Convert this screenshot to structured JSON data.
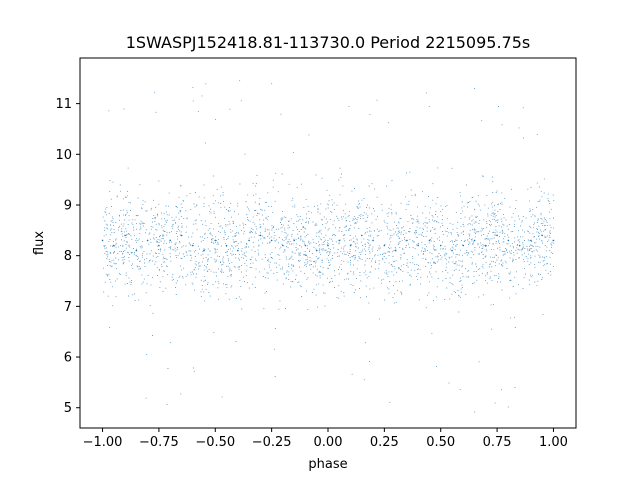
{
  "chart_data": {
    "type": "scatter",
    "title": "1SWASPJ152418.81-113730.0 Period 2215095.75s",
    "xlabel": "phase",
    "ylabel": "flux",
    "xlim": [
      -1.1,
      1.1
    ],
    "ylim": [
      4.6,
      11.9
    ],
    "xticks": [
      -1.0,
      -0.75,
      -0.5,
      -0.25,
      0.0,
      0.25,
      0.5,
      0.75,
      1.0
    ],
    "xtick_labels": [
      "−1.00",
      "−0.75",
      "−0.50",
      "−0.25",
      "0.00",
      "0.25",
      "0.50",
      "0.75",
      "1.00"
    ],
    "yticks": [
      5,
      6,
      7,
      8,
      9,
      10,
      11
    ],
    "ytick_labels": [
      "5",
      "6",
      "7",
      "8",
      "9",
      "10",
      "11"
    ],
    "grid": false,
    "marker_color": "#1f77b4",
    "summary": {
      "x_range": [
        -1.0,
        1.0
      ],
      "flux_core_range": [
        7.2,
        9.2
      ],
      "flux_median": 8.3,
      "flux_outlier_range": [
        4.9,
        11.5
      ]
    },
    "series": [
      {
        "x": [
          -1.0,
          -0.95,
          -0.9,
          -0.85,
          -0.8,
          -0.75,
          -0.7,
          -0.65,
          -0.6,
          -0.55,
          -0.5,
          -0.45,
          -0.4,
          -0.35,
          -0.3,
          -0.25,
          -0.2,
          -0.15,
          -0.1,
          -0.05,
          0.0,
          0.05,
          0.1,
          0.15,
          0.2,
          0.25,
          0.3,
          0.35,
          0.4,
          0.45,
          0.5,
          0.55,
          0.6,
          0.65,
          0.7,
          0.75,
          0.8,
          0.85,
          0.9,
          0.95,
          1.0
        ],
        "y": [
          8.3,
          8.2,
          8.4,
          8.1,
          8.3,
          8.2,
          8.3,
          8.4,
          8.2,
          8.1,
          8.3,
          8.2,
          8.1,
          8.3,
          8.4,
          8.3,
          8.2,
          8.3,
          8.2,
          8.1,
          8.2,
          8.3,
          8.2,
          8.4,
          8.3,
          8.2,
          8.1,
          8.3,
          8.2,
          8.3,
          8.2,
          8.1,
          8.2,
          8.3,
          8.2,
          8.4,
          8.3,
          8.2,
          8.3,
          8.4,
          8.3
        ]
      }
    ]
  }
}
